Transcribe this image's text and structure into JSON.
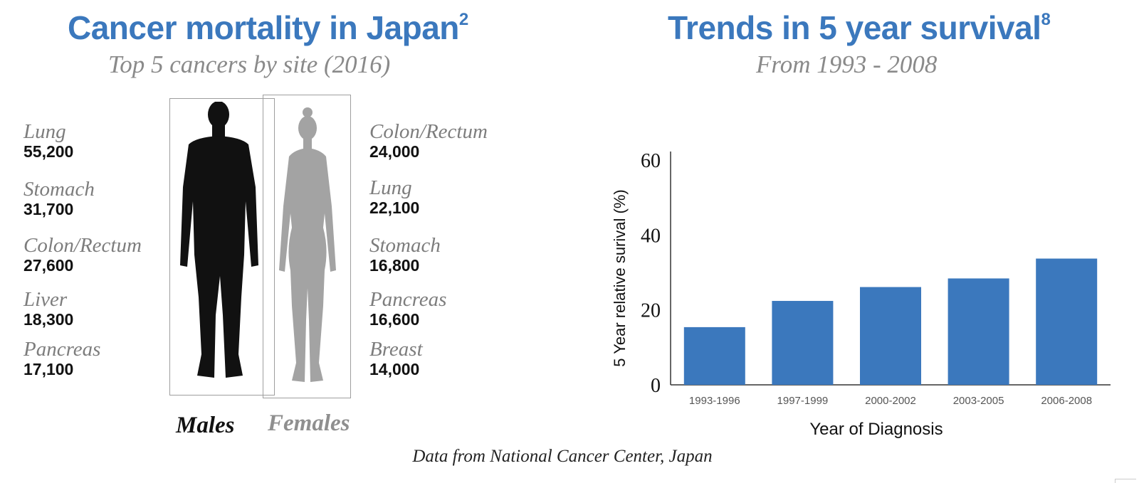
{
  "left": {
    "title": "Cancer mortality in Japan",
    "title_ref": "2",
    "subtitle": "Top 5 cancers by site (2016)",
    "males": {
      "label": "Males",
      "items": [
        {
          "site": "Lung",
          "deaths": "55,200"
        },
        {
          "site": "Stomach",
          "deaths": "31,700"
        },
        {
          "site": "Colon/Rectum",
          "deaths": "27,600"
        },
        {
          "site": "Liver",
          "deaths": "18,300"
        },
        {
          "site": "Pancreas",
          "deaths": "17,100"
        }
      ]
    },
    "females": {
      "label": "Females",
      "items": [
        {
          "site": "Colon/Rectum",
          "deaths": "24,000"
        },
        {
          "site": "Lung",
          "deaths": "22,100"
        },
        {
          "site": "Stomach",
          "deaths": "16,800"
        },
        {
          "site": "Pancreas",
          "deaths": "16,600"
        },
        {
          "site": "Breast",
          "deaths": "14,000"
        }
      ]
    },
    "colors": {
      "male": "#111111",
      "female": "#a3a3a3",
      "box": "#9e9e9e"
    }
  },
  "right": {
    "title": "Trends in 5 year survival",
    "title_ref": "8",
    "subtitle": "From 1993 - 2008"
  },
  "footer": "Data from National Cancer Center, Japan",
  "colors": {
    "accent": "#3b78bd",
    "subtitle": "#8a8a8a"
  },
  "chart_data": {
    "type": "bar",
    "categories": [
      "1993-1996",
      "1997-1999",
      "2000-2002",
      "2003-2005",
      "2006-2008"
    ],
    "values": [
      15.4,
      22.4,
      26.1,
      28.4,
      33.7
    ],
    "xlabel": "Year of Diagnosis",
    "ylabel": "5 Year relative surival (%)",
    "ylim": [
      0,
      60
    ],
    "yticks": [
      0,
      20,
      40,
      60
    ],
    "bar_color": "#3b78bd",
    "grid": false,
    "legend": "none"
  }
}
